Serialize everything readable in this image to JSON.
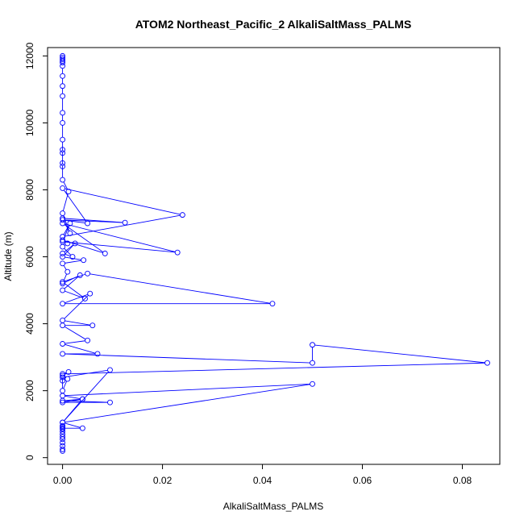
{
  "chart_data": {
    "type": "line",
    "title": "ATOM2 Northeast_Pacific_2 AlkaliSaltMass_PALMS",
    "xlabel": "AlkaliSaltMass_PALMS",
    "ylabel": "Altitude (m)",
    "xlim": [
      -0.003,
      0.0875
    ],
    "ylim": [
      -200,
      12250
    ],
    "xticks": [
      0.0,
      0.02,
      0.04,
      0.06,
      0.08
    ],
    "xtick_labels": [
      "0.00",
      "0.02",
      "0.04",
      "0.06",
      "0.08"
    ],
    "yticks": [
      0,
      2000,
      4000,
      6000,
      8000,
      10000,
      12000
    ],
    "ytick_labels": [
      "0",
      "2000",
      "4000",
      "6000",
      "8000",
      "10000",
      "12000"
    ],
    "series_color": "#0000ff",
    "markers": "open-circle",
    "series": [
      {
        "x": [
          0,
          0,
          0,
          0,
          0,
          0,
          0,
          0,
          0,
          0,
          0,
          0,
          0.004,
          0,
          0.004,
          0,
          0.0095,
          0,
          0.004,
          0,
          0.05,
          0,
          0.0095,
          0,
          0,
          0.001,
          0,
          0,
          0.0012,
          0,
          0.085,
          0.05,
          0.05,
          0,
          0.007,
          0,
          0.005,
          0,
          0.006,
          0,
          0.0055,
          0,
          0.042,
          0.005,
          0,
          0.0045,
          0,
          0.0035,
          0,
          0.001,
          0,
          0.0042,
          0,
          0.0025,
          0,
          0.002,
          0,
          0.001,
          0,
          0.0085,
          0,
          0.023,
          0,
          0.0015,
          0,
          0.024,
          0,
          0.005,
          0,
          0.0125,
          0,
          0.0015,
          0,
          0.0012,
          0,
          0,
          0,
          0,
          0,
          0,
          0,
          0,
          0,
          0,
          0,
          0,
          0,
          0,
          0,
          0,
          0
        ],
        "y": [
          200,
          250,
          350,
          450,
          550,
          620,
          700,
          780,
          850,
          920,
          950,
          880,
          880,
          1050,
          1750,
          1650,
          1650,
          1700,
          1750,
          1850,
          2200,
          1050,
          2620,
          2400,
          2300,
          2350,
          2000,
          2450,
          2560,
          2500,
          2830,
          3370,
          2830,
          3100,
          3100,
          3400,
          3500,
          3950,
          3950,
          4100,
          4900,
          4600,
          4600,
          5500,
          5250,
          4750,
          5000,
          5450,
          5200,
          5550,
          5800,
          5900,
          6000,
          6400,
          6100,
          6000,
          6300,
          6400,
          6500,
          6100,
          7000,
          6130,
          6450,
          7000,
          6600,
          7250,
          8050,
          7000,
          7100,
          7020,
          7150,
          6700,
          7300,
          7950,
          8300,
          8800,
          8700,
          9200,
          9100,
          9500,
          10000,
          10300,
          10800,
          11100,
          11400,
          11700,
          11800,
          11850,
          11900,
          11950,
          12000
        ]
      }
    ]
  }
}
